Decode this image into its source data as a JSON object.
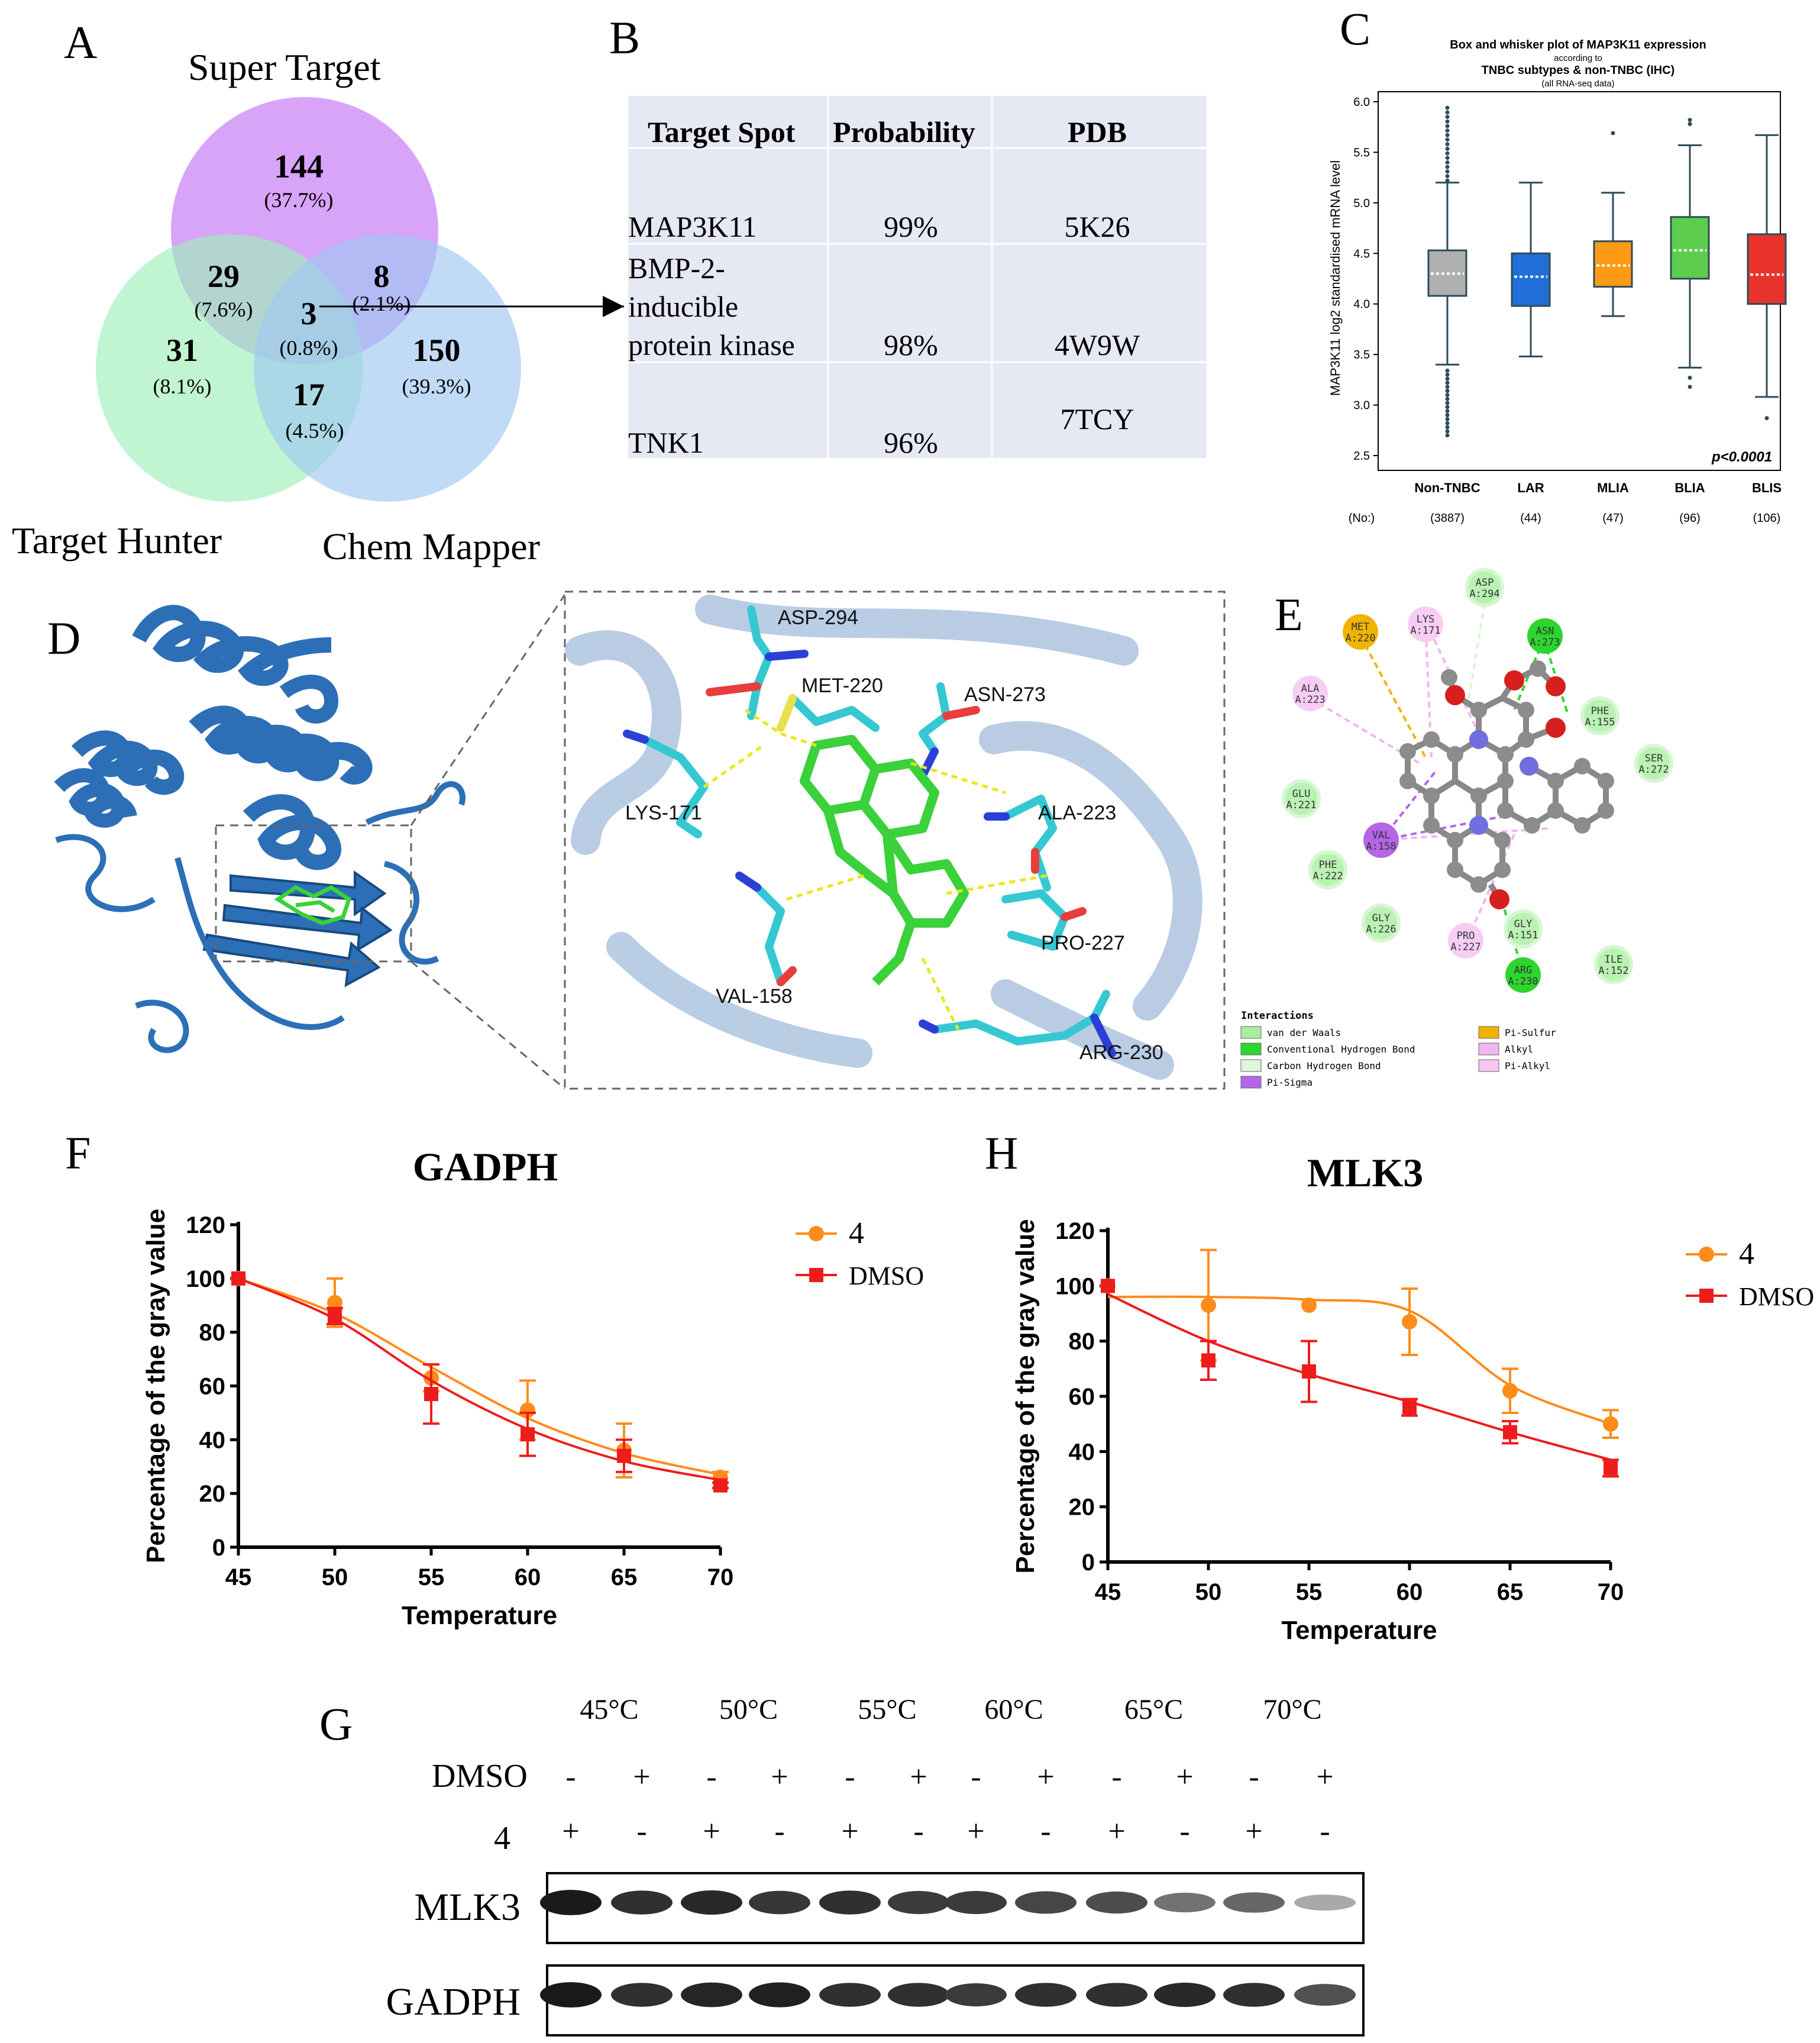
{
  "panel_letters": {
    "a": "A",
    "b": "B",
    "c": "C",
    "d": "D",
    "e": "E",
    "f": "F",
    "g": "G",
    "h": "H"
  },
  "venn": {
    "sets": [
      "Super Target",
      "Target Hunter",
      "Chem Mapper"
    ],
    "regions": [
      {
        "count": "144",
        "pct": "(37.7%)"
      },
      {
        "count": "29",
        "pct": "(7.6%)"
      },
      {
        "count": "8",
        "pct": "(2.1%)"
      },
      {
        "count": "3",
        "pct": "(0.8%)"
      },
      {
        "count": "31",
        "pct": "(8.1%)"
      },
      {
        "count": "150",
        "pct": "(39.3%)"
      },
      {
        "count": "17",
        "pct": "(4.5%)"
      }
    ],
    "colors": {
      "super": "#c77df5",
      "hunter": "#9ff0b8",
      "chem": "#9fc8f3"
    }
  },
  "target_table": {
    "headers": [
      "Target Spot",
      "Probability",
      "PDB"
    ],
    "rows": [
      {
        "target": "MAP3K11",
        "prob": "99%",
        "pdb": "5K26"
      },
      {
        "target_lines": [
          "BMP-2-",
          "inducible",
          "protein kinase"
        ],
        "prob": "98%",
        "pdb": "4W9W"
      },
      {
        "target": "TNK1",
        "prob": "96%",
        "pdb": "7TCY"
      }
    ],
    "bg": "#e6e8f4"
  },
  "boxplot": {
    "title_lines": [
      "Box and whisker plot of MAP3K11 expression",
      "according to",
      "TNBC subtypes & non-TNBC (IHC)",
      "(all RNA-seq data)"
    ],
    "ylabel": "MAP3K11 log2 standardised mRNA level",
    "yticks": [
      "2.5",
      "3.0",
      "3.5",
      "4.0",
      "4.5",
      "5.0",
      "5.5",
      "6.0"
    ],
    "pvalue": "p<0.0001",
    "no_label": "(No:)",
    "groups": [
      {
        "name": "Non-TNBC",
        "n": "(3887)",
        "color": "#b0b0b0",
        "q1": 4.08,
        "median": 4.3,
        "q3": 4.53,
        "low": 3.4,
        "high": 5.2
      },
      {
        "name": "LAR",
        "n": "(44)",
        "color": "#1f6fd6",
        "q1": 3.98,
        "median": 4.27,
        "q3": 4.5,
        "low": 3.48,
        "high": 5.2
      },
      {
        "name": "MLIA",
        "n": "(47)",
        "color": "#ff9a14",
        "q1": 4.17,
        "median": 4.38,
        "q3": 4.62,
        "low": 3.88,
        "high": 5.1
      },
      {
        "name": "BLIA",
        "n": "(96)",
        "color": "#5ecc4d",
        "q1": 4.25,
        "median": 4.53,
        "q3": 4.86,
        "low": 3.37,
        "high": 5.57
      },
      {
        "name": "BLIS",
        "n": "(106)",
        "color": "#e8342c",
        "q1": 4.0,
        "median": 4.29,
        "q3": 4.69,
        "low": 3.08,
        "high": 5.67
      }
    ],
    "ylim": [
      2.5,
      6.0
    ]
  },
  "docking": {
    "residues": [
      "ASP-294",
      "MET-220",
      "ASN-273",
      "ALA-223",
      "LYS-171",
      "PRO-227",
      "VAL-158",
      "ARG-230"
    ]
  },
  "interaction_map": {
    "residues": [
      {
        "label": [
          "ASP",
          "A:294"
        ],
        "kind": "vdw"
      },
      {
        "label": [
          "MET",
          "A:220"
        ],
        "kind": "sulfur"
      },
      {
        "label": [
          "LYS",
          "A:171"
        ],
        "kind": "alkyl"
      },
      {
        "label": [
          "ASN",
          "A:273"
        ],
        "kind": "hbond"
      },
      {
        "label": [
          "ALA",
          "A:223"
        ],
        "kind": "alkyl"
      },
      {
        "label": [
          "PHE",
          "A:155"
        ],
        "kind": "vdw"
      },
      {
        "label": [
          "SER",
          "A:272"
        ],
        "kind": "vdw"
      },
      {
        "label": [
          "GLU",
          "A:221"
        ],
        "kind": "vdw"
      },
      {
        "label": [
          "VAL",
          "A:158"
        ],
        "kind": "sigma"
      },
      {
        "label": [
          "PHE",
          "A:222"
        ],
        "kind": "vdw"
      },
      {
        "label": [
          "GLY",
          "A:226"
        ],
        "kind": "vdw"
      },
      {
        "label": [
          "PRO",
          "A:227"
        ],
        "kind": "alkyl"
      },
      {
        "label": [
          "GLY",
          "A:151"
        ],
        "kind": "vdw"
      },
      {
        "label": [
          "ARG",
          "A:230"
        ],
        "kind": "hbond"
      },
      {
        "label": [
          "ILE",
          "A:152"
        ],
        "kind": "vdw"
      }
    ],
    "legend_title": "Interactions",
    "legend": [
      {
        "label": "van der Waals",
        "color": "#a6eea0"
      },
      {
        "label": "Conventional Hydrogen Bond",
        "color": "#2ed52e"
      },
      {
        "label": "Carbon Hydrogen Bond",
        "color": "#dff5dc"
      },
      {
        "label": "Pi-Sigma",
        "color": "#b565e8"
      },
      {
        "label": "Pi-Sulfur",
        "color": "#f0b400"
      },
      {
        "label": "Alkyl",
        "color": "#f1b6f1"
      },
      {
        "label": "Pi-Alkyl",
        "color": "#f5c6f2"
      }
    ]
  },
  "chart_data": [
    {
      "type": "line",
      "title": "GADPH",
      "xlabel": "Temperature",
      "ylabel": "Percentage of the gray value",
      "x": [
        45,
        50,
        55,
        60,
        65,
        70
      ],
      "xlim": [
        45,
        70
      ],
      "ylim": [
        0,
        120
      ],
      "yticks": [
        0,
        20,
        40,
        60,
        80,
        100,
        120
      ],
      "series": [
        {
          "name": "4",
          "color": "#ff8c1a",
          "marker": "circle",
          "values": [
            100,
            91,
            63,
            51,
            36,
            26
          ],
          "err": [
            0,
            9,
            5,
            11,
            10,
            2
          ],
          "fit": [
            100,
            87,
            67,
            48,
            35,
            27
          ]
        },
        {
          "name": "DMSO",
          "color": "#ee1c1c",
          "marker": "square",
          "values": [
            100,
            86,
            57,
            42,
            34,
            23
          ],
          "err": [
            0,
            3,
            11,
            8,
            6,
            1
          ],
          "fit": [
            100,
            85,
            62,
            44,
            32,
            25
          ]
        }
      ]
    },
    {
      "type": "line",
      "title": "MLK3",
      "xlabel": "Temperature",
      "ylabel": "Percentage of the gray value",
      "x": [
        45,
        50,
        55,
        60,
        65,
        70
      ],
      "xlim": [
        45,
        70
      ],
      "ylim": [
        0,
        120
      ],
      "yticks": [
        0,
        20,
        40,
        60,
        80,
        100,
        120
      ],
      "series": [
        {
          "name": "4",
          "color": "#ff8c1a",
          "marker": "circle",
          "values": [
            100,
            93,
            93,
            87,
            62,
            50
          ],
          "err": [
            0,
            20,
            0,
            12,
            8,
            5
          ],
          "fit": [
            96,
            96,
            95,
            91,
            64,
            50
          ]
        },
        {
          "name": "DMSO",
          "color": "#ee1c1c",
          "marker": "square",
          "values": [
            100,
            73,
            69,
            56,
            47,
            34
          ],
          "err": [
            0,
            7,
            11,
            3,
            4,
            3
          ],
          "fit": [
            97,
            80,
            68,
            58,
            47,
            37
          ]
        }
      ]
    }
  ],
  "western": {
    "temps": [
      "45°C",
      "50°C",
      "55°C",
      "60°C",
      "65°C",
      "70°C"
    ],
    "row1_label": "DMSO",
    "row2_label": "4",
    "dmso": [
      "-",
      "+",
      "-",
      "+",
      "-",
      "+",
      "-",
      "+",
      "-",
      "+",
      "-",
      "+"
    ],
    "cpd": [
      "+",
      "-",
      "+",
      "-",
      "+",
      "-",
      "+",
      "-",
      "+",
      "-",
      "+",
      "-"
    ],
    "bands": [
      {
        "label": "MLK3",
        "intensity": [
          0.95,
          0.85,
          0.88,
          0.82,
          0.85,
          0.8,
          0.8,
          0.75,
          0.72,
          0.55,
          0.6,
          0.3
        ]
      },
      {
        "label": "GADPH",
        "intensity": [
          0.95,
          0.85,
          0.9,
          0.92,
          0.85,
          0.85,
          0.8,
          0.85,
          0.85,
          0.88,
          0.85,
          0.7
        ]
      }
    ]
  }
}
